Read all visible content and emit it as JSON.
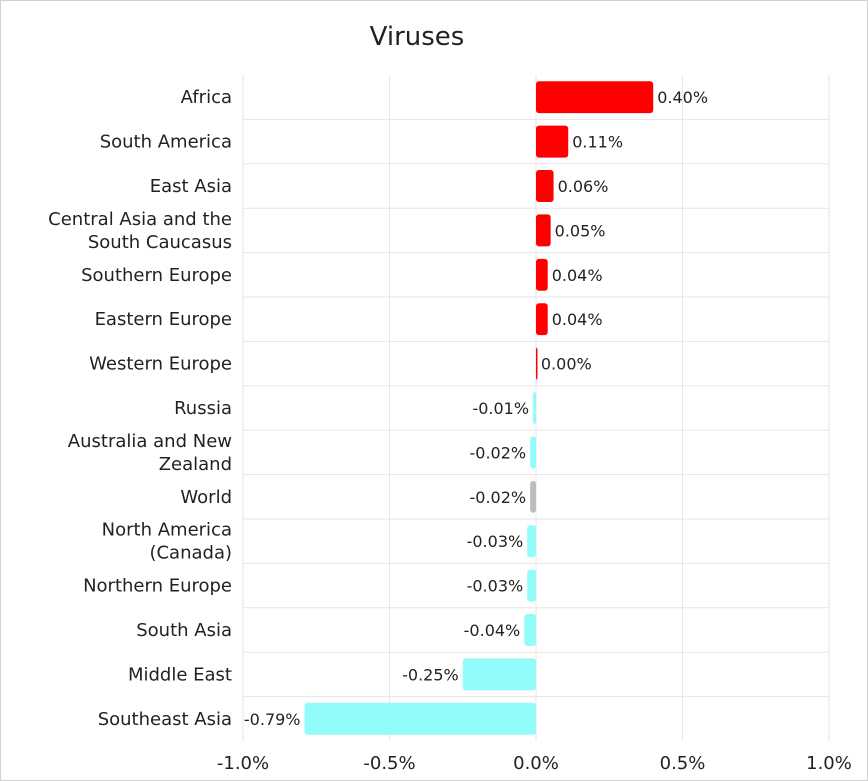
{
  "chart_data": {
    "type": "bar",
    "orientation": "horizontal",
    "title": "Viruses",
    "xlabel": "",
    "ylabel": "",
    "xlim": [
      -1.0,
      1.0
    ],
    "x_ticks": [
      "-1.0%",
      "-0.5%",
      "0.0%",
      "0.5%",
      "1.0%"
    ],
    "x_tick_values": [
      -1.0,
      -0.5,
      0.0,
      0.5,
      1.0
    ],
    "grid": true,
    "categories": [
      [
        "Africa"
      ],
      [
        "South America"
      ],
      [
        "East Asia"
      ],
      [
        "Central Asia and the",
        "South Caucasus"
      ],
      [
        "Southern Europe"
      ],
      [
        "Eastern Europe"
      ],
      [
        "Western Europe"
      ],
      [
        "Russia"
      ],
      [
        "Australia and New",
        "Zealand"
      ],
      [
        "World"
      ],
      [
        "North America",
        "(Canada)"
      ],
      [
        "Northern Europe"
      ],
      [
        "South Asia"
      ],
      [
        "Middle East"
      ],
      [
        "Southeast Asia"
      ]
    ],
    "values": [
      0.4,
      0.11,
      0.06,
      0.05,
      0.04,
      0.04,
      0.003,
      -0.01,
      -0.02,
      -0.02,
      -0.03,
      -0.03,
      -0.04,
      -0.25,
      -0.79
    ],
    "value_labels": [
      "0.40%",
      "0.11%",
      "0.06%",
      "0.05%",
      "0.04%",
      "0.04%",
      "0.00%",
      "-0.01%",
      "-0.02%",
      "-0.02%",
      "-0.03%",
      "-0.03%",
      "-0.04%",
      "-0.25%",
      "-0.79%"
    ],
    "colors": {
      "positive": "#ff0000",
      "negative": "#92fcfa",
      "world": "#bdbdbd",
      "grid": "#e6e6e6"
    }
  }
}
